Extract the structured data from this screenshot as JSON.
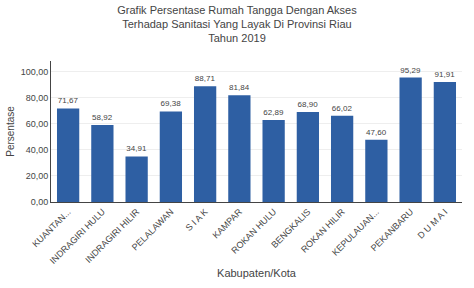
{
  "chart_data": {
    "type": "bar",
    "title": "Grafik Persentase Rumah Tangga Dengan Akses\nTerhadap Sanitasi Yang Layak Di Provinsi Riau\nTahun 2019",
    "xlabel": "Kabupaten/Kota",
    "ylabel": "Persentase",
    "categories": [
      "KUANTAN...",
      "INDRAGIRI HULU",
      "INDRAGIRI HILIR",
      "PELALAWAN",
      "S I A K",
      "KAMPAR",
      "ROKAN HULU",
      "BENGKALIS",
      "ROKAN HILIR",
      "KEPULAUAN...",
      "PEKANBARU",
      "D U M A I"
    ],
    "values": [
      71.67,
      58.92,
      34.91,
      69.38,
      88.71,
      81.84,
      62.89,
      68.9,
      66.02,
      47.6,
      95.29,
      91.91
    ],
    "value_labels": [
      "71,67",
      "58,92",
      "34,91",
      "69,38",
      "88,71",
      "81,84",
      "62,89",
      "68,90",
      "66,02",
      "47,60",
      "95,29",
      "91,91"
    ],
    "data_labels": true,
    "color": "#2E5FA3",
    "ylim": [
      0,
      108
    ],
    "yticks": [
      {
        "value": 0,
        "label": "0,00"
      },
      {
        "value": 20,
        "label": "20,00"
      },
      {
        "value": 40,
        "label": "40,00"
      },
      {
        "value": 60,
        "label": "60,00"
      },
      {
        "value": 80,
        "label": "80,00"
      },
      {
        "value": 100,
        "label": "100,00"
      }
    ],
    "grid": true
  }
}
